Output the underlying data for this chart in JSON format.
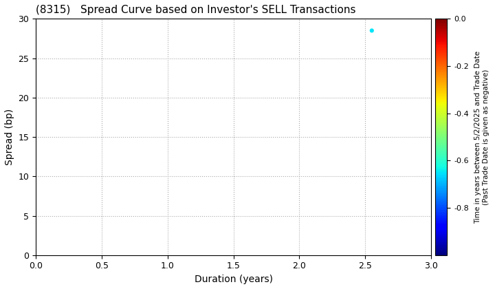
{
  "title": "(8315)   Spread Curve based on Investor's SELL Transactions",
  "xlabel": "Duration (years)",
  "ylabel": "Spread (bp)",
  "xlim": [
    0.0,
    3.0
  ],
  "ylim": [
    0,
    30
  ],
  "xticks": [
    0.0,
    0.5,
    1.0,
    1.5,
    2.0,
    2.5,
    3.0
  ],
  "yticks": [
    0,
    5,
    10,
    15,
    20,
    25,
    30
  ],
  "scatter_x": [
    2.55
  ],
  "scatter_y": [
    28.5
  ],
  "scatter_color_value": [
    -0.65
  ],
  "colorbar_label": "Time in years between 5/2/2025 and Trade Date\n(Past Trade Date is given as negative)",
  "colorbar_vmin": -1.0,
  "colorbar_vmax": 0.0,
  "colorbar_ticks": [
    0.0,
    -0.2,
    -0.4,
    -0.6,
    -0.8
  ],
  "background_color": "#ffffff",
  "grid_color": "#aaaaaa",
  "title_fontsize": 11,
  "label_fontsize": 10
}
